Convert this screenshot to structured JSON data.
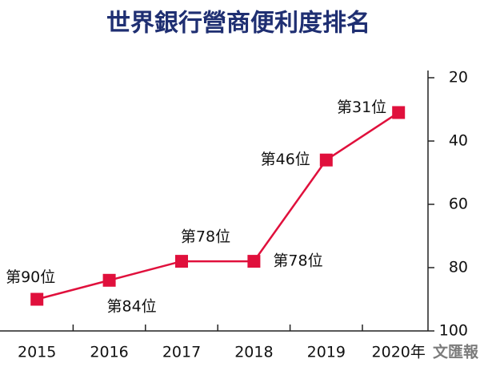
{
  "chart_data": {
    "type": "line",
    "title": "世界銀行營商便利度排名",
    "categories": [
      "2015",
      "2016",
      "2017",
      "2018",
      "2019",
      "2020年"
    ],
    "series": [
      {
        "name": "排名",
        "color": "#e0103c",
        "values": [
          90,
          84,
          78,
          78,
          46,
          31
        ],
        "value_labels": [
          "第90位",
          "第84位",
          "第78位",
          "第78位",
          "第46位",
          "第31位"
        ]
      }
    ],
    "ylim": [
      20,
      100
    ],
    "yticks": [
      20,
      40,
      60,
      80,
      100
    ],
    "invert_y": true,
    "y_axis_side": "right",
    "grid": false,
    "watermark": "文匯報"
  }
}
